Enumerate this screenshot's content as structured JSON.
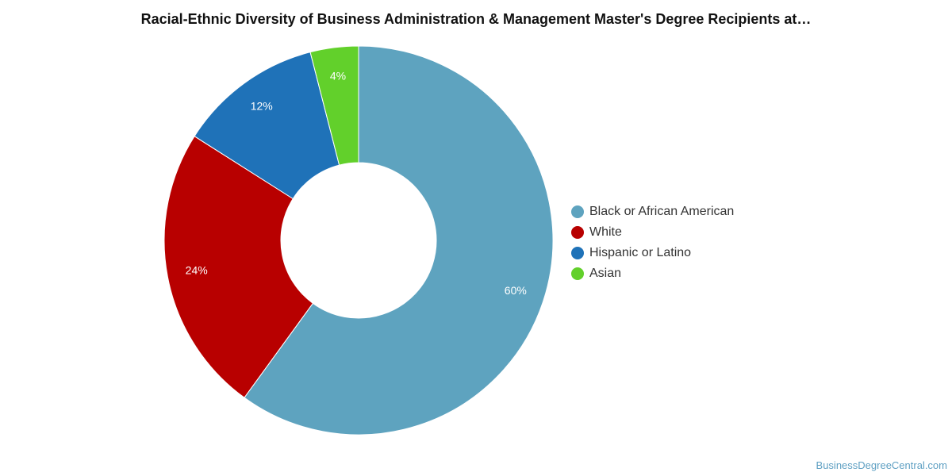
{
  "chart_data": {
    "type": "pie",
    "title": "Racial-Ethnic Diversity of Business Administration & Management Master's Degree Recipients at…",
    "donut": true,
    "legend_position": "right",
    "series": [
      {
        "name": "Black or African American",
        "value": 60,
        "label": "60%",
        "color": "#5ea3bf"
      },
      {
        "name": "White",
        "value": 24,
        "label": "24%",
        "color": "#b80000"
      },
      {
        "name": "Hispanic or Latino",
        "value": 12,
        "label": "12%",
        "color": "#1f72b8"
      },
      {
        "name": "Asian",
        "value": 4,
        "label": "4%",
        "color": "#62d02b"
      }
    ]
  },
  "watermark": "BusinessDegreeCentral.com"
}
